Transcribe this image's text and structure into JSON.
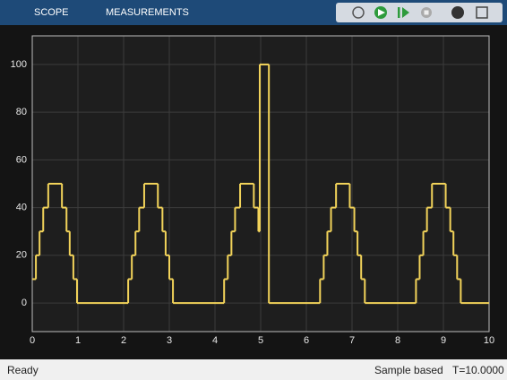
{
  "tabs": [
    "SCOPE",
    "MEASUREMENTS"
  ],
  "chart_data": {
    "type": "line",
    "drawstyle": "steps-post",
    "x": [
      0,
      0.08,
      0.16,
      0.24,
      0.35,
      0.65,
      0.75,
      0.82,
      0.9,
      0.98,
      2.1,
      2.18,
      2.26,
      2.34,
      2.45,
      2.75,
      2.85,
      2.92,
      3.0,
      3.08,
      4.2,
      4.28,
      4.36,
      4.44,
      4.55,
      4.85,
      4.95,
      4.98,
      5.18,
      6.3,
      6.38,
      6.46,
      6.54,
      6.65,
      6.95,
      7.05,
      7.12,
      7.2,
      7.28,
      8.4,
      8.48,
      8.56,
      8.64,
      8.75,
      9.05,
      9.15,
      9.22,
      9.3,
      9.38,
      10
    ],
    "values": [
      10,
      20,
      30,
      40,
      50,
      40,
      30,
      20,
      10,
      0,
      10,
      20,
      30,
      40,
      50,
      40,
      30,
      20,
      10,
      0,
      10,
      20,
      30,
      40,
      50,
      40,
      30,
      100,
      0,
      10,
      20,
      30,
      40,
      50,
      40,
      30,
      20,
      10,
      0,
      10,
      20,
      30,
      40,
      50,
      40,
      30,
      20,
      10,
      0,
      0
    ],
    "color": "#f2d35a",
    "xlim": [
      0,
      10
    ],
    "xticks": [
      0,
      1,
      2,
      3,
      4,
      5,
      6,
      7,
      8,
      9,
      10
    ],
    "ylim": [
      -12,
      112
    ],
    "yticks": [
      0,
      20,
      40,
      60,
      80,
      100
    ],
    "grid": true
  },
  "status": {
    "left": "Ready",
    "mode": "Sample based",
    "time": "T=10.0000"
  }
}
